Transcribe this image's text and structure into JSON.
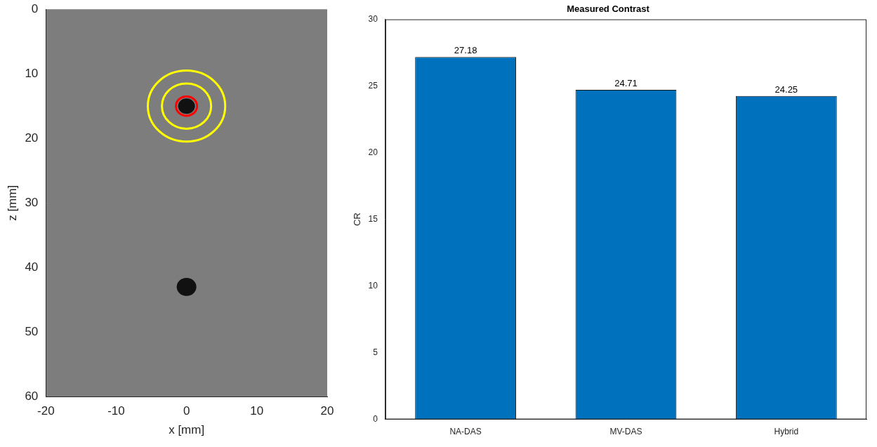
{
  "chart_data": [
    {
      "type": "image",
      "xlabel": "x [mm]",
      "ylabel": "z [mm]",
      "xlim": [
        -20,
        20
      ],
      "ylim": [
        60,
        0
      ],
      "xticks": [
        -20,
        -10,
        0,
        10,
        20
      ],
      "yticks": [
        0,
        10,
        20,
        30,
        40,
        50,
        60
      ],
      "cysts": [
        {
          "x": 0,
          "z": 15,
          "r": 1.2
        },
        {
          "x": 0,
          "z": 43,
          "r": 1.4
        }
      ],
      "circles": [
        {
          "x": 0,
          "z": 15,
          "r": 1.5,
          "color": "#ff0000"
        },
        {
          "x": 0,
          "z": 15,
          "r": 3.5,
          "color": "#ffff00"
        },
        {
          "x": 0,
          "z": 15,
          "r": 5.5,
          "color": "#ffff00"
        }
      ]
    },
    {
      "type": "bar",
      "title": "Measured Contrast",
      "ylabel": "CR",
      "categories": [
        "NA-DAS",
        "MV-DAS",
        "Hybrid"
      ],
      "values": [
        27.18,
        24.71,
        24.25
      ],
      "color": "#0072bd",
      "ylim": [
        0,
        30
      ],
      "yticks": [
        0,
        5,
        10,
        15,
        20,
        25,
        30
      ],
      "grid": false,
      "data_labels": true
    }
  ]
}
